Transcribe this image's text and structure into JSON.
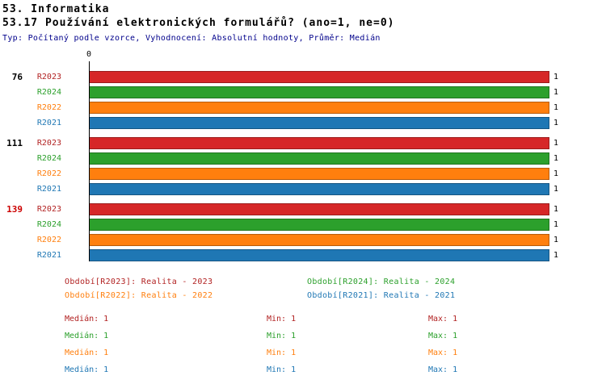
{
  "header": {
    "title": "53. Informatika",
    "subtitle": "53.17 Používání elektronických formulářů? (ano=1, ne=0)",
    "meta": "Typ: Počítaný podle vzorce, Vyhodnocení: Absolutní hodnoty, Průměr: Medián"
  },
  "chart_data": {
    "type": "bar",
    "orientation": "horizontal",
    "title": "53.17 Používání elektronických formulářů? (ano=1, ne=0)",
    "xlabel": "",
    "ylabel": "",
    "xlim": [
      0,
      1
    ],
    "x_origin_label": "0",
    "grid": false,
    "categories": [
      "76",
      "111",
      "139"
    ],
    "series_periods": [
      "R2023",
      "R2024",
      "R2022",
      "R2021"
    ],
    "groups": [
      {
        "id": "76",
        "id_color": "#000000",
        "bars": [
          {
            "period": "R2023",
            "value": 1,
            "value_label": "1",
            "color": "#d62728",
            "label_color": "#b22222"
          },
          {
            "period": "R2024",
            "value": 1,
            "value_label": "1",
            "color": "#2ca02c",
            "label_color": "#2ca02c"
          },
          {
            "period": "R2022",
            "value": 1,
            "value_label": "1",
            "color": "#ff7f0e",
            "label_color": "#ff7f0e"
          },
          {
            "period": "R2021",
            "value": 1,
            "value_label": "1",
            "color": "#1f77b4",
            "label_color": "#1f77b4"
          }
        ]
      },
      {
        "id": "111",
        "id_color": "#000000",
        "bars": [
          {
            "period": "R2023",
            "value": 1,
            "value_label": "1",
            "color": "#d62728",
            "label_color": "#b22222"
          },
          {
            "period": "R2024",
            "value": 1,
            "value_label": "1",
            "color": "#2ca02c",
            "label_color": "#2ca02c"
          },
          {
            "period": "R2022",
            "value": 1,
            "value_label": "1",
            "color": "#ff7f0e",
            "label_color": "#ff7f0e"
          },
          {
            "period": "R2021",
            "value": 1,
            "value_label": "1",
            "color": "#1f77b4",
            "label_color": "#1f77b4"
          }
        ]
      },
      {
        "id": "139",
        "id_color": "#cc0000",
        "bars": [
          {
            "period": "R2023",
            "value": 1,
            "value_label": "1",
            "color": "#d62728",
            "label_color": "#b22222"
          },
          {
            "period": "R2024",
            "value": 1,
            "value_label": "1",
            "color": "#2ca02c",
            "label_color": "#2ca02c"
          },
          {
            "period": "R2022",
            "value": 1,
            "value_label": "1",
            "color": "#ff7f0e",
            "label_color": "#ff7f0e"
          },
          {
            "period": "R2021",
            "value": 1,
            "value_label": "1",
            "color": "#1f77b4",
            "label_color": "#1f77b4"
          }
        ]
      }
    ]
  },
  "legend": {
    "items": [
      {
        "text": "Období[R2023]: Realita - 2023",
        "color": "#b22222"
      },
      {
        "text": "Období[R2024]: Realita - 2024",
        "color": "#2ca02c"
      },
      {
        "text": "Období[R2022]: Realita - 2022",
        "color": "#ff7f0e"
      },
      {
        "text": "Období[R2021]: Realita - 2021",
        "color": "#1f77b4"
      }
    ]
  },
  "stats": {
    "rows": [
      {
        "series": "R2023",
        "median": "Medián: 1",
        "min": "Min: 1",
        "max": "Max: 1",
        "color": "#b22222"
      },
      {
        "series": "R2024",
        "median": "Medián: 1",
        "min": "Min: 1",
        "max": "Max: 1",
        "color": "#2ca02c"
      },
      {
        "series": "R2022",
        "median": "Medián: 1",
        "min": "Min: 1",
        "max": "Max: 1",
        "color": "#ff7f0e"
      },
      {
        "series": "R2021",
        "median": "Medián: 1",
        "min": "Min: 1",
        "max": "Max: 1",
        "color": "#1f77b4"
      }
    ]
  }
}
